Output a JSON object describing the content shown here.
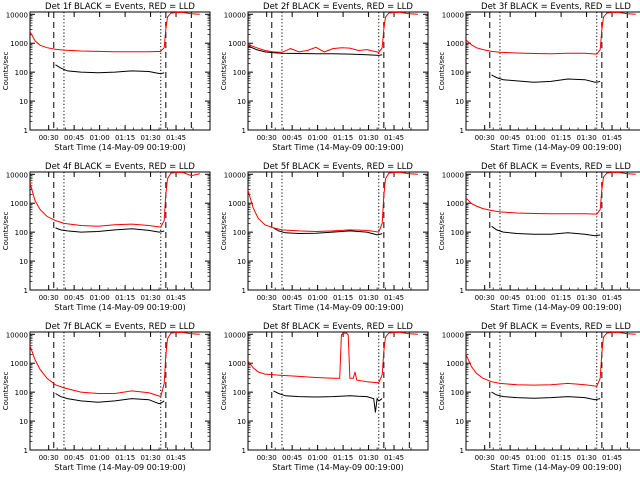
{
  "ylabel": "Counts/sec",
  "xlabel": "Start Time (14-May-09 00:19:00)",
  "x_ticks": [
    "00:30",
    "00:45",
    "01:00",
    "01:15",
    "01:30",
    "01:45"
  ],
  "y_ticks": [
    "1",
    "10",
    "100",
    "1000",
    "10000"
  ],
  "colors": {
    "events": "#000000",
    "lld": "#ff0000"
  },
  "chart_data": [
    {
      "type": "line",
      "title": "Det 1f BLACK = Events, RED = LLD",
      "xlabel": "Start Time (14-May-09 00:19:00)",
      "ylabel": "Counts/sec",
      "x_unit": "minutes after 00:19",
      "xlim": [
        0,
        106
      ],
      "ylim": [
        1,
        12000
      ],
      "yscale": "log",
      "dashed_lines_x": [
        14,
        80,
        95
      ],
      "dotted_lines_x": [
        20,
        77
      ],
      "series": [
        {
          "name": "Events",
          "color": "#000000",
          "x": [
            15,
            18,
            22,
            30,
            40,
            50,
            60,
            70,
            76,
            78,
            79
          ],
          "y": [
            180,
            140,
            110,
            100,
            95,
            100,
            110,
            105,
            90,
            92,
            95
          ]
        },
        {
          "name": "LLD",
          "color": "#ff0000",
          "x": [
            0,
            3,
            6,
            10,
            15,
            20,
            30,
            40,
            50,
            60,
            70,
            77,
            79,
            80,
            81,
            83,
            86,
            90,
            95,
            100
          ],
          "y": [
            2500,
            1200,
            850,
            700,
            620,
            580,
            540,
            520,
            510,
            510,
            510,
            520,
            700,
            3000,
            8000,
            11000,
            11500,
            11500,
            10500,
            10000
          ]
        }
      ]
    },
    {
      "type": "line",
      "title": "Det 2f BLACK = Events, RED = LLD",
      "xlabel": "Start Time (14-May-09 00:19:00)",
      "ylabel": "Counts/sec",
      "x_unit": "minutes after 00:19",
      "xlim": [
        0,
        106
      ],
      "ylim": [
        1,
        12000
      ],
      "yscale": "log",
      "dashed_lines_x": [
        14,
        80,
        95
      ],
      "dotted_lines_x": [
        20,
        77
      ],
      "series": [
        {
          "name": "Events",
          "color": "#000000",
          "x": [
            0,
            5,
            10,
            15,
            20,
            30,
            40,
            50,
            60,
            70,
            77,
            79
          ],
          "y": [
            800,
            600,
            500,
            470,
            450,
            440,
            430,
            430,
            420,
            400,
            380,
            400
          ]
        },
        {
          "name": "LLD",
          "color": "#ff0000",
          "x": [
            0,
            5,
            10,
            15,
            20,
            25,
            30,
            35,
            40,
            45,
            50,
            55,
            60,
            65,
            70,
            77,
            79,
            80,
            81,
            83,
            86,
            90,
            95,
            100
          ],
          "y": [
            900,
            700,
            560,
            500,
            480,
            650,
            500,
            560,
            720,
            500,
            650,
            700,
            680,
            560,
            600,
            480,
            700,
            3000,
            8000,
            11000,
            11500,
            11500,
            10500,
            10000
          ]
        }
      ]
    },
    {
      "type": "line",
      "title": "Det 3f BLACK = Events, RED = LLD",
      "xlabel": "Start Time (14-May-09 00:19:00)",
      "ylabel": "Counts/sec",
      "x_unit": "minutes after 00:19",
      "xlim": [
        0,
        106
      ],
      "ylim": [
        1,
        12000
      ],
      "yscale": "log",
      "dashed_lines_x": [
        14,
        80,
        95
      ],
      "dotted_lines_x": [
        20,
        77
      ],
      "series": [
        {
          "name": "Events",
          "color": "#000000",
          "x": [
            15,
            18,
            22,
            30,
            40,
            50,
            60,
            70,
            76,
            78,
            79
          ],
          "y": [
            80,
            65,
            55,
            50,
            45,
            48,
            58,
            55,
            45,
            46,
            48
          ]
        },
        {
          "name": "LLD",
          "color": "#ff0000",
          "x": [
            0,
            3,
            6,
            10,
            15,
            20,
            30,
            40,
            50,
            60,
            70,
            77,
            79,
            80,
            81,
            83,
            86,
            90,
            95,
            100
          ],
          "y": [
            1300,
            900,
            700,
            600,
            520,
            490,
            460,
            440,
            430,
            450,
            450,
            420,
            600,
            2800,
            8000,
            11000,
            11500,
            11500,
            10500,
            10000
          ]
        }
      ]
    },
    {
      "type": "line",
      "title": "Det 4f BLACK = Events, RED = LLD",
      "xlabel": "Start Time (14-May-09 00:19:00)",
      "ylabel": "Counts/sec",
      "x_unit": "minutes after 00:19",
      "xlim": [
        0,
        106
      ],
      "ylim": [
        1,
        12000
      ],
      "yscale": "log",
      "dashed_lines_x": [
        14,
        80,
        95
      ],
      "dotted_lines_x": [
        20,
        77
      ],
      "series": [
        {
          "name": "Events",
          "color": "#000000",
          "x": [
            15,
            18,
            22,
            30,
            40,
            50,
            60,
            70,
            76,
            78,
            79
          ],
          "y": [
            140,
            120,
            110,
            100,
            105,
            120,
            130,
            115,
            100,
            105,
            110
          ]
        },
        {
          "name": "LLD",
          "color": "#ff0000",
          "x": [
            0,
            3,
            6,
            10,
            15,
            20,
            30,
            40,
            50,
            60,
            70,
            77,
            79,
            80,
            81,
            83,
            86,
            90,
            95,
            100
          ],
          "y": [
            5000,
            1200,
            600,
            350,
            250,
            200,
            170,
            160,
            180,
            190,
            170,
            150,
            250,
            2000,
            7000,
            11000,
            11500,
            11500,
            9000,
            10500
          ]
        }
      ]
    },
    {
      "type": "line",
      "title": "Det 5f BLACK = Events, RED = LLD",
      "xlabel": "Start Time (14-May-09 00:19:00)",
      "ylabel": "Counts/sec",
      "x_unit": "minutes after 00:19",
      "xlim": [
        0,
        106
      ],
      "ylim": [
        1,
        12000
      ],
      "yscale": "log",
      "dashed_lines_x": [
        14,
        80,
        95
      ],
      "dotted_lines_x": [
        20,
        77
      ],
      "series": [
        {
          "name": "Events",
          "color": "#000000",
          "x": [
            15,
            18,
            22,
            30,
            40,
            50,
            60,
            70,
            76,
            78,
            79
          ],
          "y": [
            140,
            110,
            95,
            90,
            92,
            100,
            110,
            100,
            80,
            85,
            90
          ]
        },
        {
          "name": "LLD",
          "color": "#ff0000",
          "x": [
            0,
            3,
            6,
            10,
            15,
            20,
            30,
            40,
            50,
            60,
            70,
            77,
            79,
            80,
            81,
            83,
            86,
            90,
            95,
            100
          ],
          "y": [
            2800,
            700,
            300,
            180,
            140,
            120,
            110,
            105,
            110,
            120,
            115,
            100,
            200,
            1800,
            7000,
            11000,
            11500,
            11500,
            10500,
            10000
          ]
        }
      ]
    },
    {
      "type": "line",
      "title": "Det 6f BLACK = Events, RED = LLD",
      "xlabel": "Start Time (14-May-09 00:19:00)",
      "ylabel": "Counts/sec",
      "x_unit": "minutes after 00:19",
      "xlim": [
        0,
        106
      ],
      "ylim": [
        1,
        12000
      ],
      "yscale": "log",
      "dashed_lines_x": [
        14,
        80,
        95
      ],
      "dotted_lines_x": [
        20,
        77
      ],
      "series": [
        {
          "name": "Events",
          "color": "#000000",
          "x": [
            15,
            18,
            22,
            30,
            40,
            50,
            60,
            70,
            76,
            78,
            79
          ],
          "y": [
            160,
            120,
            100,
            90,
            85,
            85,
            95,
            85,
            75,
            78,
            80
          ]
        },
        {
          "name": "LLD",
          "color": "#ff0000",
          "x": [
            0,
            3,
            6,
            10,
            15,
            20,
            30,
            40,
            50,
            60,
            70,
            77,
            79,
            80,
            81,
            83,
            86,
            90,
            95,
            100
          ],
          "y": [
            1500,
            1000,
            800,
            650,
            560,
            500,
            460,
            440,
            430,
            430,
            430,
            420,
            600,
            2800,
            8000,
            11000,
            11500,
            11500,
            10500,
            10000
          ]
        }
      ]
    },
    {
      "type": "line",
      "title": "Det 7f BLACK = Events, RED = LLD",
      "xlabel": "Start Time (14-May-09 00:19:00)",
      "ylabel": "Counts/sec",
      "x_unit": "minutes after 00:19",
      "xlim": [
        0,
        106
      ],
      "ylim": [
        1,
        12000
      ],
      "yscale": "log",
      "dashed_lines_x": [
        14,
        80,
        95
      ],
      "dotted_lines_x": [
        20,
        77
      ],
      "series": [
        {
          "name": "Events",
          "color": "#000000",
          "x": [
            15,
            18,
            22,
            30,
            40,
            50,
            60,
            70,
            76,
            78,
            79
          ],
          "y": [
            90,
            70,
            60,
            50,
            45,
            50,
            60,
            55,
            40,
            45,
            50
          ]
        },
        {
          "name": "LLD",
          "color": "#ff0000",
          "x": [
            0,
            3,
            6,
            10,
            15,
            20,
            30,
            40,
            50,
            60,
            70,
            77,
            79,
            80,
            81,
            83,
            86,
            90,
            95,
            100
          ],
          "y": [
            4000,
            1300,
            600,
            300,
            180,
            140,
            100,
            90,
            90,
            110,
            95,
            70,
            200,
            1800,
            7000,
            11000,
            11500,
            11500,
            10500,
            10000
          ]
        }
      ]
    },
    {
      "type": "line",
      "title": "Det 8f BLACK = Events, RED = LLD",
      "xlabel": "Start Time (14-May-09 00:19:00)",
      "ylabel": "Counts/sec",
      "x_unit": "minutes after 00:19",
      "xlim": [
        0,
        106
      ],
      "ylim": [
        1,
        12000
      ],
      "yscale": "log",
      "dashed_lines_x": [
        14,
        80,
        95
      ],
      "dotted_lines_x": [
        20,
        77
      ],
      "series": [
        {
          "name": "Events",
          "color": "#000000",
          "x": [
            15,
            18,
            22,
            30,
            40,
            50,
            60,
            65,
            70,
            74,
            75,
            76,
            77,
            79
          ],
          "y": [
            110,
            90,
            75,
            70,
            68,
            70,
            75,
            72,
            70,
            60,
            20,
            60,
            50,
            60
          ]
        },
        {
          "name": "LLD",
          "color": "#ff0000",
          "x": [
            0,
            3,
            6,
            10,
            15,
            20,
            30,
            40,
            50,
            54,
            55,
            56,
            58,
            59,
            60,
            62,
            63,
            64,
            70,
            77,
            79,
            80,
            81,
            83,
            86,
            90,
            95,
            100
          ],
          "y": [
            1200,
            700,
            500,
            420,
            400,
            380,
            350,
            320,
            300,
            300,
            9500,
            11000,
            11000,
            9500,
            300,
            300,
            500,
            260,
            230,
            210,
            400,
            2500,
            8000,
            11000,
            11500,
            11500,
            10500,
            10000
          ]
        }
      ]
    },
    {
      "type": "line",
      "title": "Det 9f BLACK = Events, RED = LLD",
      "xlabel": "Start Time (14-May-09 00:19:00)",
      "ylabel": "Counts/sec",
      "x_unit": "minutes after 00:19",
      "xlim": [
        0,
        106
      ],
      "ylim": [
        1,
        12000
      ],
      "yscale": "log",
      "dashed_lines_x": [
        14,
        80,
        95
      ],
      "dotted_lines_x": [
        20,
        77
      ],
      "series": [
        {
          "name": "Events",
          "color": "#000000",
          "x": [
            15,
            18,
            22,
            30,
            40,
            50,
            60,
            70,
            76,
            78,
            79
          ],
          "y": [
            100,
            80,
            70,
            65,
            62,
            65,
            70,
            65,
            55,
            58,
            60
          ]
        },
        {
          "name": "LLD",
          "color": "#ff0000",
          "x": [
            0,
            3,
            6,
            10,
            15,
            20,
            30,
            40,
            50,
            60,
            70,
            77,
            79,
            80,
            81,
            83,
            86,
            90,
            95,
            100
          ],
          "y": [
            2000,
            800,
            450,
            300,
            230,
            200,
            180,
            175,
            180,
            200,
            180,
            160,
            300,
            2200,
            8000,
            11000,
            11500,
            11500,
            10500,
            10000
          ]
        }
      ]
    }
  ]
}
